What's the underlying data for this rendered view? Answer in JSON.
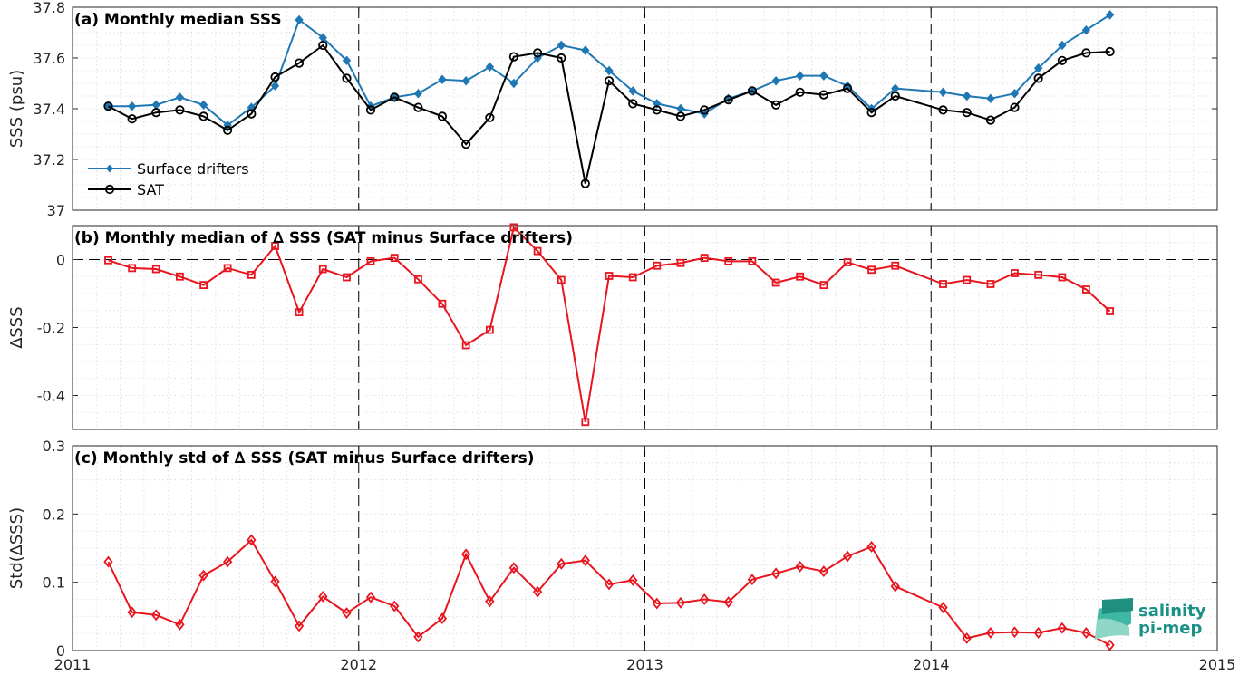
{
  "chart_data": [
    {
      "type": "line",
      "title": "(a) Monthly median SSS",
      "ylabel": "SSS (psu)",
      "xlim": [
        2011,
        2015
      ],
      "ylim": [
        37,
        37.8
      ],
      "xticks": [
        "2011",
        "2012",
        "2013",
        "2014",
        "2015"
      ],
      "yticks": [
        "37",
        "37.2",
        "37.4",
        "37.6",
        "37.8"
      ],
      "grid": true,
      "legend_position": "bottom-left",
      "series": [
        {
          "name": "Surface drifters",
          "color": "#1f78b4",
          "marker": "filled-diamond",
          "x": [
            2011.125,
            2011.208,
            2011.292,
            2011.375,
            2011.458,
            2011.542,
            2011.625,
            2011.708,
            2011.792,
            2011.875,
            2011.958,
            2012.042,
            2012.125,
            2012.208,
            2012.292,
            2012.375,
            2012.458,
            2012.542,
            2012.625,
            2012.708,
            2012.792,
            2012.875,
            2012.958,
            2013.042,
            2013.125,
            2013.208,
            2013.292,
            2013.375,
            2013.458,
            2013.542,
            2013.625,
            2013.708,
            2013.792,
            2013.875,
            2014.042,
            2014.125,
            2014.208,
            2014.292,
            2014.375,
            2014.458,
            2014.542,
            2014.625
          ],
          "values": [
            37.41,
            37.41,
            37.415,
            37.445,
            37.415,
            37.335,
            37.405,
            37.49,
            37.75,
            37.68,
            37.59,
            37.41,
            37.445,
            37.46,
            37.515,
            37.51,
            37.565,
            37.5,
            37.6,
            37.65,
            37.63,
            37.55,
            37.47,
            37.42,
            37.4,
            37.38,
            37.44,
            37.47,
            37.51,
            37.53,
            37.53,
            37.49,
            37.4,
            37.48,
            37.465,
            37.45,
            37.44,
            37.46,
            37.56,
            37.65,
            37.71,
            37.77
          ]
        },
        {
          "name": "SAT",
          "color": "#000000",
          "marker": "open-circle",
          "x": [
            2011.125,
            2011.208,
            2011.292,
            2011.375,
            2011.458,
            2011.542,
            2011.625,
            2011.708,
            2011.792,
            2011.875,
            2011.958,
            2012.042,
            2012.125,
            2012.208,
            2012.292,
            2012.375,
            2012.458,
            2012.542,
            2012.625,
            2012.708,
            2012.792,
            2012.875,
            2012.958,
            2013.042,
            2013.125,
            2013.208,
            2013.292,
            2013.375,
            2013.458,
            2013.542,
            2013.625,
            2013.708,
            2013.792,
            2013.875,
            2014.042,
            2014.125,
            2014.208,
            2014.292,
            2014.375,
            2014.458,
            2014.542,
            2014.625
          ],
          "values": [
            37.41,
            37.36,
            37.385,
            37.395,
            37.37,
            37.315,
            37.38,
            37.525,
            37.58,
            37.65,
            37.52,
            37.395,
            37.445,
            37.405,
            37.37,
            37.26,
            37.365,
            37.605,
            37.62,
            37.6,
            37.105,
            37.51,
            37.42,
            37.395,
            37.37,
            37.395,
            37.435,
            37.47,
            37.415,
            37.465,
            37.455,
            37.48,
            37.385,
            37.45,
            37.395,
            37.385,
            37.355,
            37.405,
            37.52,
            37.59,
            37.62,
            37.625
          ]
        }
      ]
    },
    {
      "type": "line",
      "title": "(b) Monthly median of ∆ SSS (SAT minus Surface drifters)",
      "ylabel": "∆SSS",
      "xlim": [
        2011,
        2015
      ],
      "ylim": [
        -0.5,
        0.1
      ],
      "xticks": [
        "2011",
        "2012",
        "2013",
        "2014",
        "2015"
      ],
      "yticks": [
        "-0.4",
        "-0.2",
        "0"
      ],
      "grid": true,
      "zero_line": true,
      "series": [
        {
          "color": "#e8141e",
          "marker": "open-square",
          "x": [
            2011.125,
            2011.208,
            2011.292,
            2011.375,
            2011.458,
            2011.542,
            2011.625,
            2011.708,
            2011.792,
            2011.875,
            2011.958,
            2012.042,
            2012.125,
            2012.208,
            2012.292,
            2012.375,
            2012.458,
            2012.542,
            2012.625,
            2012.708,
            2012.792,
            2012.875,
            2012.958,
            2013.042,
            2013.125,
            2013.208,
            2013.292,
            2013.375,
            2013.458,
            2013.542,
            2013.625,
            2013.708,
            2013.792,
            2013.875,
            2014.042,
            2014.125,
            2014.208,
            2014.292,
            2014.375,
            2014.458,
            2014.542,
            2014.625
          ],
          "values": [
            -0.002,
            -0.025,
            -0.028,
            -0.05,
            -0.075,
            -0.025,
            -0.045,
            0.04,
            -0.155,
            -0.028,
            -0.052,
            -0.005,
            0.005,
            -0.058,
            -0.13,
            -0.252,
            -0.207,
            0.095,
            0.025,
            -0.06,
            -0.478,
            -0.048,
            -0.052,
            -0.018,
            -0.01,
            0.005,
            -0.005,
            -0.005,
            -0.068,
            -0.05,
            -0.075,
            -0.008,
            -0.03,
            -0.018,
            -0.072,
            -0.06,
            -0.072,
            -0.04,
            -0.045,
            -0.052,
            -0.088,
            -0.152
          ]
        }
      ]
    },
    {
      "type": "line",
      "title": "(c) Monthly std of ∆ SSS (SAT minus Surface drifters)",
      "ylabel": "Std(∆SSS)",
      "xlim": [
        2011,
        2015
      ],
      "ylim": [
        0,
        0.3
      ],
      "xticks": [
        "2011",
        "2012",
        "2013",
        "2014",
        "2015"
      ],
      "yticks": [
        "0",
        "0.1",
        "0.2",
        "0.3"
      ],
      "grid": true,
      "series": [
        {
          "color": "#e8141e",
          "marker": "open-diamond",
          "x": [
            2011.125,
            2011.208,
            2011.292,
            2011.375,
            2011.458,
            2011.542,
            2011.625,
            2011.708,
            2011.792,
            2011.875,
            2011.958,
            2012.042,
            2012.125,
            2012.208,
            2012.292,
            2012.375,
            2012.458,
            2012.542,
            2012.625,
            2012.708,
            2012.792,
            2012.875,
            2012.958,
            2013.042,
            2013.125,
            2013.208,
            2013.292,
            2013.375,
            2013.458,
            2013.542,
            2013.625,
            2013.708,
            2013.792,
            2013.875,
            2014.042,
            2014.125,
            2014.208,
            2014.292,
            2014.375,
            2014.458,
            2014.542,
            2014.625
          ],
          "values": [
            0.13,
            0.056,
            0.052,
            0.038,
            0.11,
            0.13,
            0.162,
            0.101,
            0.036,
            0.079,
            0.055,
            0.078,
            0.065,
            0.02,
            0.047,
            0.141,
            0.072,
            0.121,
            0.086,
            0.127,
            0.132,
            0.097,
            0.103,
            0.069,
            0.07,
            0.075,
            0.071,
            0.104,
            0.113,
            0.123,
            0.116,
            0.138,
            0.152,
            0.094,
            0.063,
            0.018,
            0.026,
            0.027,
            0.026,
            0.033,
            0.026,
            0.008
          ]
        }
      ]
    }
  ],
  "logo": {
    "line1": "salinity",
    "line2": "pi-mep"
  }
}
